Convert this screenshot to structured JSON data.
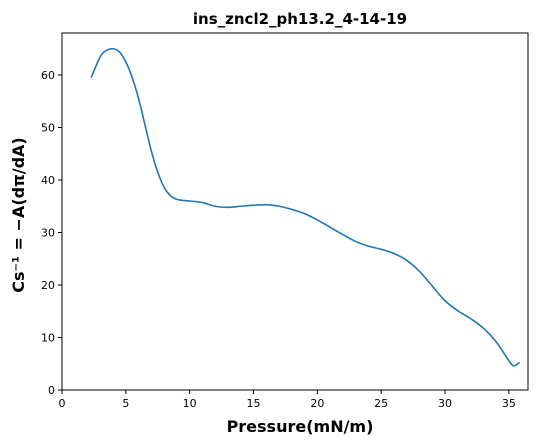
{
  "chart_data": {
    "type": "line",
    "title": "ins_zncl2_ph13.2_4-14-19",
    "xlabel": "Pressure(mN/m)",
    "ylabel": "Cs⁻¹ = −A(dπ/dA)",
    "xlim": [
      0,
      36.5
    ],
    "ylim": [
      0,
      68
    ],
    "xticks": [
      "0",
      "5",
      "10",
      "15",
      "20",
      "25",
      "30",
      "35"
    ],
    "yticks": [
      "0",
      "10",
      "20",
      "30",
      "40",
      "50",
      "60"
    ],
    "grid": false,
    "legend": "none",
    "colors": {
      "line": "#1f77b4"
    },
    "series": [
      {
        "x": [
          2.3,
          3.0,
          3.5,
          4.0,
          4.5,
          5.0,
          5.5,
          6.0,
          6.5,
          7.0,
          7.5,
          8.0,
          8.5,
          9.0,
          9.5,
          10.0,
          11.0,
          12.0,
          13.0,
          14.0,
          15.0,
          16.0,
          17.0,
          18.0,
          19.0,
          20.0,
          21.0,
          22.0,
          23.0,
          24.0,
          25.0,
          26.0,
          27.0,
          28.0,
          29.0,
          30.0,
          31.0,
          32.0,
          33.0,
          34.0,
          35.0,
          35.4,
          35.8
        ],
        "values": [
          59.6,
          63.5,
          64.7,
          65.0,
          64.4,
          62.5,
          59.5,
          55.5,
          50.5,
          45.5,
          41.5,
          38.6,
          37.0,
          36.3,
          36.1,
          36.0,
          35.7,
          35.0,
          34.8,
          35.0,
          35.2,
          35.3,
          35.0,
          34.4,
          33.6,
          32.4,
          31.0,
          29.6,
          28.3,
          27.4,
          26.8,
          26.0,
          24.7,
          22.6,
          19.8,
          17.0,
          15.1,
          13.6,
          11.8,
          9.2,
          5.6,
          4.6,
          5.2
        ]
      }
    ]
  }
}
